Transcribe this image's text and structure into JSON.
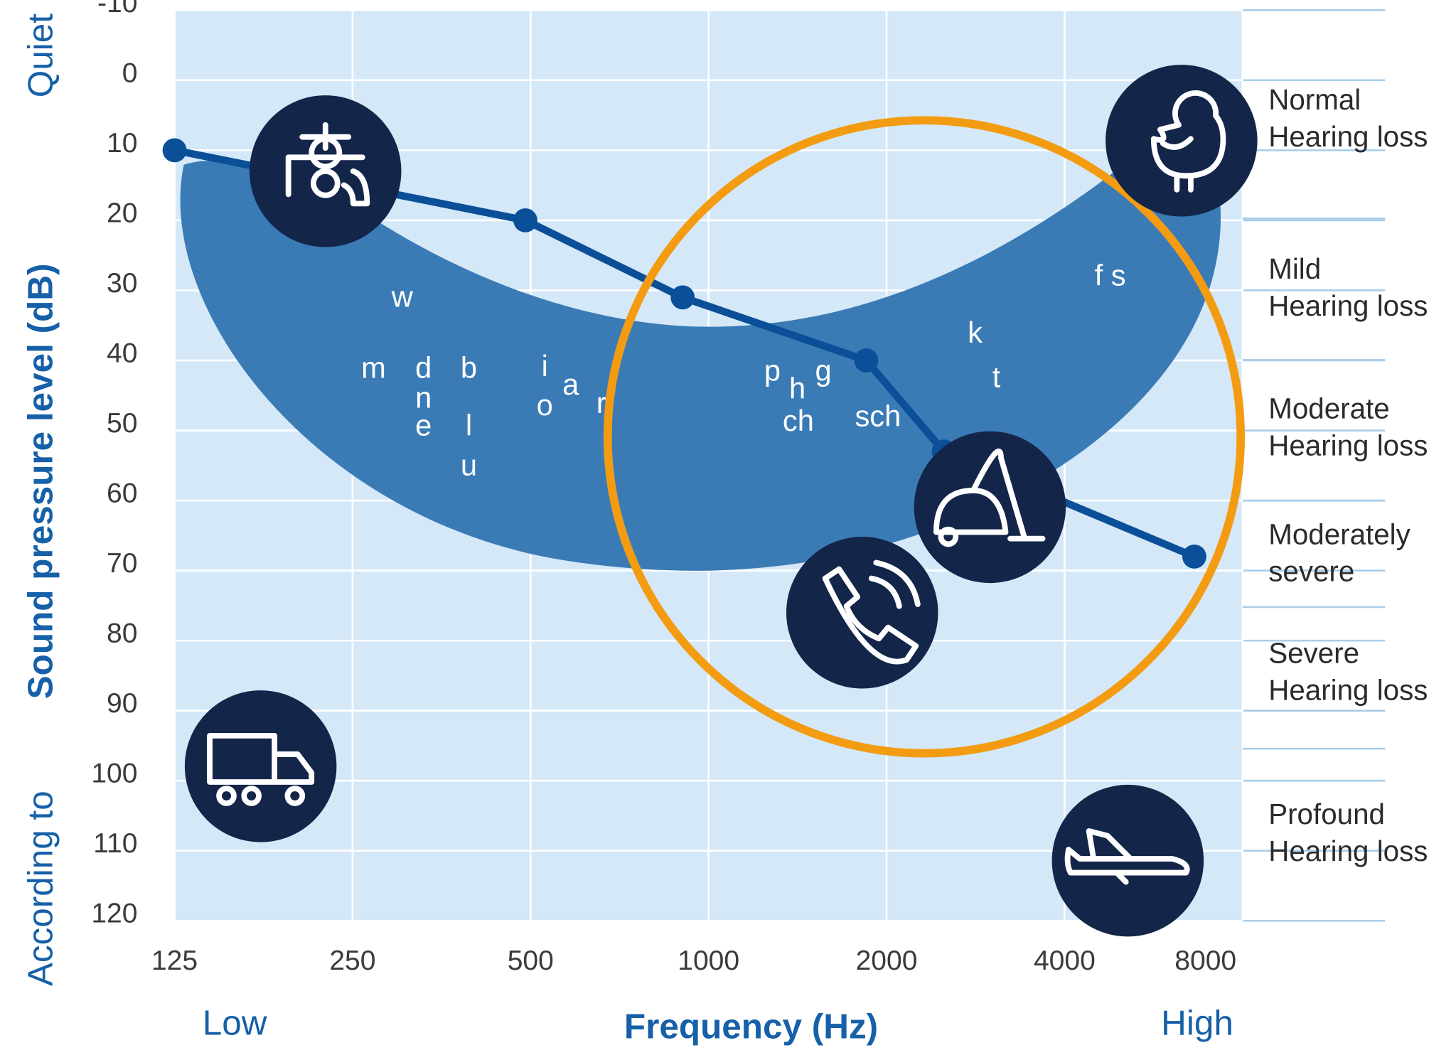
{
  "chart_data": {
    "type": "line",
    "y_label": "Sound pressure level (dB)",
    "y_note_top": "Quiet",
    "y_note_bottom": "According to",
    "x_label": "Frequency (Hz)",
    "x_note_left": "Low",
    "x_note_right": "High",
    "x": [
      125,
      490,
      904,
      1848,
      2500,
      6630
    ],
    "values": [
      10,
      20,
      31,
      40,
      53,
      68
    ],
    "color": "#0a4f98",
    "xscale": "log",
    "xlim": [
      125,
      8000
    ],
    "xticks": [
      125,
      250,
      500,
      1000,
      2000,
      4000,
      8000
    ],
    "ylim": [
      -10,
      120
    ],
    "y_inverted": true,
    "yticks": [
      -10,
      0,
      10,
      20,
      30,
      40,
      50,
      60,
      70,
      80,
      90,
      100,
      110,
      120
    ],
    "grid": true,
    "phonemes": [
      "w",
      "m",
      "d",
      "n",
      "e",
      "b",
      "l",
      "u",
      "i",
      "o",
      "a",
      "r",
      "p",
      "h",
      "g",
      "ch",
      "sch",
      "k",
      "t",
      "f s"
    ],
    "hearing_levels": [
      [
        "Normal",
        "Hearing loss"
      ],
      [
        "Mild",
        "Hearing loss"
      ],
      [
        "Moderate",
        "Hearing loss"
      ],
      [
        "Moderately",
        "severe"
      ],
      [
        "Severe",
        "Hearing loss"
      ],
      [
        "Profound",
        "Hearing loss"
      ]
    ]
  }
}
